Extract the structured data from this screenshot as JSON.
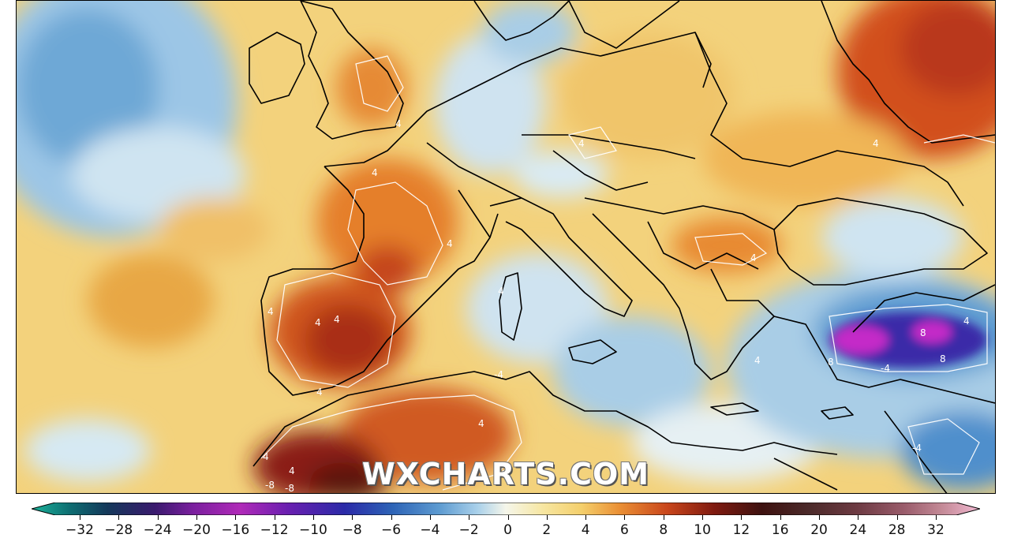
{
  "map": {
    "watermark": "WXCHARTS.COM",
    "contour_labels": [
      "4",
      "4",
      "4",
      "4",
      "4",
      "4",
      "4",
      "4",
      "4",
      "4",
      "4",
      "4",
      "4",
      "4",
      "4",
      "4",
      "4",
      "8",
      "8",
      "8",
      "-4",
      "-4",
      "-4",
      "-8",
      "-8"
    ],
    "palette": {
      "warm_light": "#f3d27c",
      "warm_orange": "#e98f3a",
      "warm_red": "#c8461f",
      "warm_dark": "#8a1f12",
      "cool_light": "#dcecf6",
      "cool_blue": "#7fb5dc",
      "cool_deep": "#2f74b8",
      "anomaly_purple": "#5b1fa0",
      "anomaly_magenta": "#d12ad2",
      "coastline": "#000000"
    }
  },
  "colorbar": {
    "ticks": [
      "−32",
      "−28",
      "−24",
      "−20",
      "−16",
      "−12",
      "−10",
      "−8",
      "−6",
      "−4",
      "−2",
      "0",
      "2",
      "4",
      "6",
      "8",
      "10",
      "12",
      "16",
      "20",
      "24",
      "28",
      "32"
    ],
    "colors": [
      "#1bb39a",
      "#0e6e72",
      "#14385a",
      "#3a1a6e",
      "#7a1f9e",
      "#b02ab8",
      "#6a1fb0",
      "#2b2aa8",
      "#2d63b6",
      "#5d9bd1",
      "#a9d0ea",
      "#e6f2f8",
      "#f7ecb3",
      "#f4cf6b",
      "#ea8f34",
      "#c9461b",
      "#7f1a10",
      "#3e1210",
      "#4c2a2a",
      "#6d3a42",
      "#9a5c6b",
      "#c48a97",
      "#f2b9d2"
    ]
  }
}
